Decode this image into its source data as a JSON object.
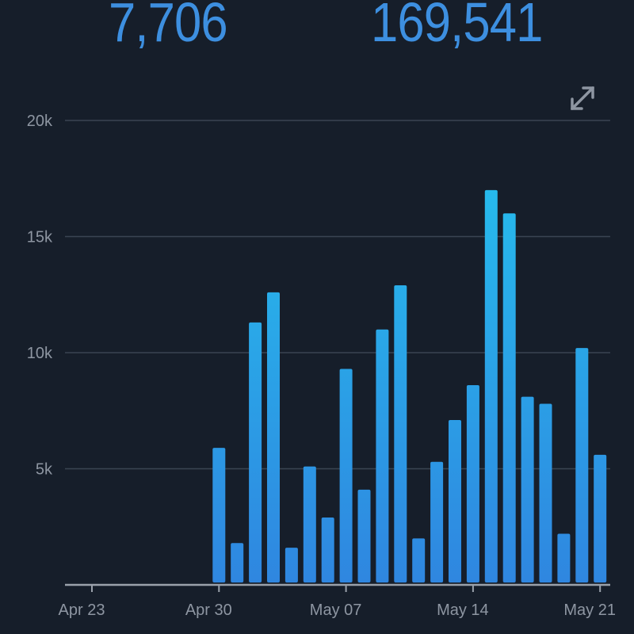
{
  "stats": {
    "left_value": "7,706",
    "right_value": "169,541"
  },
  "icons": {
    "expand": "expand-diagonal-arrows-icon"
  },
  "colors": {
    "background": "#161e2a",
    "bar_top": "#25c3ee",
    "bar_bottom": "#2f86e0",
    "stat_text": "#3d8fe0",
    "axis_text": "#8e96a2",
    "grid": "#3a4452"
  },
  "chart_data": {
    "type": "bar",
    "x_ticks": [
      "Apr 23",
      "Apr 30",
      "May 07",
      "May 14",
      "May 21"
    ],
    "y_ticks": [
      "5k",
      "10k",
      "15k",
      "20k"
    ],
    "ylim": [
      0,
      20000
    ],
    "grid": true,
    "categories": [
      "Apr 23",
      "Apr 24",
      "Apr 25",
      "Apr 26",
      "Apr 27",
      "Apr 28",
      "Apr 29",
      "Apr 30",
      "May 01",
      "May 02",
      "May 03",
      "May 04",
      "May 05",
      "May 06",
      "May 07",
      "May 08",
      "May 09",
      "May 10",
      "May 11",
      "May 12",
      "May 13",
      "May 14",
      "May 15",
      "May 16",
      "May 17",
      "May 18",
      "May 19",
      "May 20",
      "May 21"
    ],
    "values": [
      0,
      0,
      0,
      0,
      0,
      0,
      0,
      5900,
      1800,
      11300,
      12600,
      1600,
      5100,
      2900,
      9300,
      4100,
      11000,
      12900,
      2000,
      5300,
      7100,
      8600,
      17000,
      16000,
      8100,
      7800,
      2200,
      10200,
      5600
    ]
  }
}
